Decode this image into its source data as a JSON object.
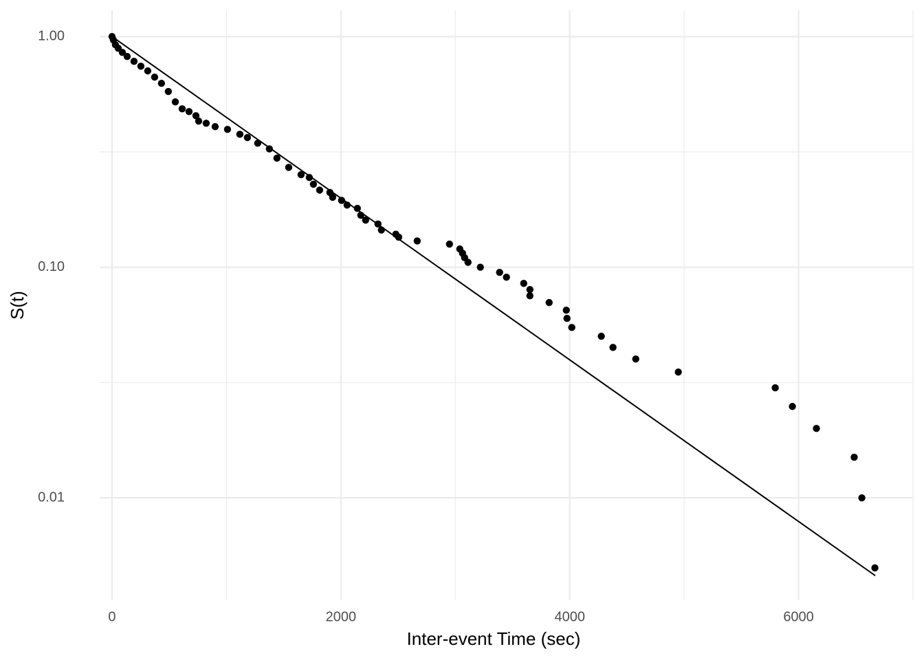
{
  "chart_data": {
    "type": "scatter",
    "x_label": "Inter-event Time (sec)",
    "y_label": "S(t)",
    "x": [
      0,
      12,
      30,
      54,
      90,
      132,
      192,
      252,
      312,
      372,
      432,
      492,
      553,
      613,
      673,
      733,
      757,
      823,
      901,
      1009,
      1117,
      1183,
      1273,
      1375,
      1441,
      1544,
      1652,
      1724,
      1760,
      1814,
      1904,
      1928,
      2006,
      2054,
      2144,
      2174,
      2216,
      2324,
      2354,
      2480,
      2505,
      2667,
      2949,
      3039,
      3063,
      3081,
      3111,
      3219,
      3387,
      3447,
      3598,
      3652,
      3652,
      3820,
      3970,
      3976,
      4018,
      4276,
      4378,
      4577,
      4949,
      5796,
      5946,
      6156,
      6486,
      6553,
      6667
    ],
    "y": [
      1.0,
      0.966,
      0.921,
      0.89,
      0.854,
      0.82,
      0.781,
      0.744,
      0.71,
      0.667,
      0.627,
      0.578,
      0.521,
      0.486,
      0.473,
      0.454,
      0.43,
      0.421,
      0.407,
      0.396,
      0.377,
      0.365,
      0.345,
      0.326,
      0.297,
      0.271,
      0.252,
      0.245,
      0.229,
      0.216,
      0.211,
      0.201,
      0.195,
      0.186,
      0.18,
      0.168,
      0.16,
      0.154,
      0.145,
      0.139,
      0.135,
      0.13,
      0.126,
      0.12,
      0.115,
      0.11,
      0.105,
      0.1,
      0.095,
      0.0905,
      0.0851,
      0.08,
      0.0752,
      0.0703,
      0.0651,
      0.06,
      0.0548,
      0.0502,
      0.0449,
      0.04,
      0.0351,
      0.03,
      0.0249,
      0.02,
      0.015,
      0.01,
      0.00497
    ],
    "color": "#000000",
    "fit": {
      "x": [
        0,
        6670
      ],
      "y": [
        1,
        0.0046
      ],
      "color": "#000000"
    },
    "xlim": [
      -108,
      7000
    ],
    "ylim": [
      0.0036,
      1.3
    ],
    "log_y": true,
    "grid": true,
    "xticks": [
      0,
      2000,
      4000,
      6000
    ],
    "yticks": [
      {
        "value": 0.01,
        "label": "0.01"
      },
      {
        "value": 0.1,
        "label": "0.10"
      },
      {
        "value": 1,
        "label": "1.00"
      }
    ]
  }
}
